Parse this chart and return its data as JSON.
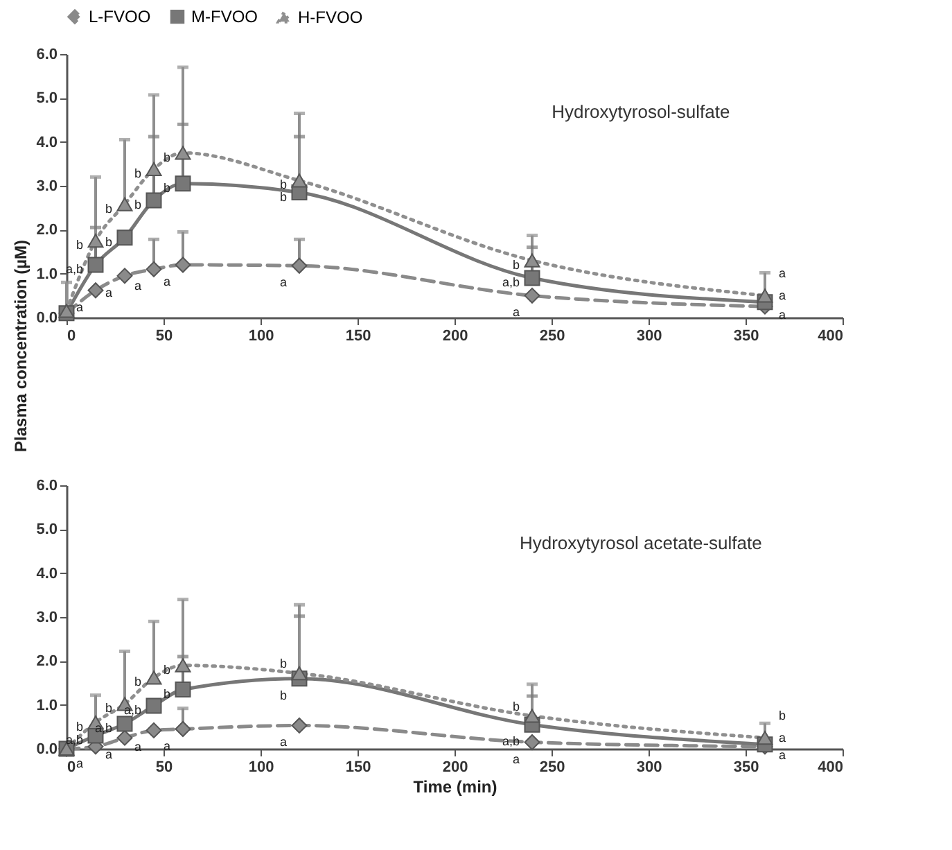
{
  "chart_data": [
    {
      "type": "line",
      "annotations": [
        "Hydroxytyrosol-sulfate",
        {
          "text": "a",
          "x": 15,
          "y": 0.62
        },
        {
          "text": "a,b",
          "x": 15,
          "y": 1.2
        },
        {
          "text": "b",
          "x": 15,
          "y": 1.75
        },
        {
          "text": "a",
          "x": 30,
          "y": 0.95
        },
        {
          "text": "b",
          "x": 30,
          "y": 1.82
        },
        {
          "text": "b",
          "x": 30,
          "y": 2.58
        },
        {
          "text": "a",
          "x": 45,
          "y": 1.1
        },
        {
          "text": "b",
          "x": 45,
          "y": 2.67
        },
        {
          "text": "b",
          "x": 45,
          "y": 3.38
        },
        {
          "text": "a",
          "x": 60,
          "y": 1.2
        },
        {
          "text": "b",
          "x": 60,
          "y": 3.05
        },
        {
          "text": "b",
          "x": 60,
          "y": 3.75
        },
        {
          "text": "a",
          "x": 120,
          "y": 1.18
        },
        {
          "text": "b",
          "x": 120,
          "y": 2.85
        },
        {
          "text": "b",
          "x": 120,
          "y": 3.12
        },
        {
          "text": "a",
          "x": 240,
          "y": 0.5
        },
        {
          "text": "a,b",
          "x": 240,
          "y": 0.9
        },
        {
          "text": "b",
          "x": 240,
          "y": 1.3
        },
        {
          "text": "a",
          "x": 360,
          "y": 0.25
        },
        {
          "text": "a",
          "x": 360,
          "y": 0.35
        },
        {
          "text": "a",
          "x": 360,
          "y": 0.5
        }
      ],
      "x": [
        0,
        15,
        30,
        45,
        60,
        120,
        240,
        360
      ],
      "series": [
        {
          "name": "L-FVOO",
          "color": "#8a8a8a",
          "marker": "diamond",
          "line_style": "dashed",
          "values": [
            0.1,
            0.62,
            0.95,
            1.1,
            1.2,
            1.18,
            0.5,
            0.25
          ],
          "errors": [
            null,
            null,
            null,
            [
              1.1,
              1.78
            ],
            [
              1.2,
              1.95
            ],
            [
              1.18,
              1.78
            ],
            null,
            null
          ]
        },
        {
          "name": "M-FVOO",
          "color": "#777777",
          "marker": "square",
          "line_style": "solid",
          "values": [
            0.1,
            1.2,
            1.82,
            2.67,
            3.05,
            2.85,
            0.9,
            0.35
          ],
          "errors": [
            null,
            [
              1.2,
              2.05
            ],
            null,
            [
              2.67,
              4.12
            ],
            [
              3.05,
              4.4
            ],
            [
              2.85,
              4.12
            ],
            [
              0.9,
              1.6
            ],
            null
          ]
        },
        {
          "name": "H-FVOO",
          "color": "#8f8f8f",
          "marker": "triangle",
          "line_style": "dotted",
          "values": [
            0.15,
            1.75,
            2.58,
            3.38,
            3.75,
            3.12,
            1.3,
            0.5
          ],
          "errors": [
            [
              0.15,
              0.8
            ],
            [
              1.75,
              3.2
            ],
            [
              2.58,
              4.05
            ],
            [
              3.38,
              5.07
            ],
            [
              3.75,
              5.7
            ],
            [
              3.12,
              4.65
            ],
            [
              1.3,
              1.87
            ],
            [
              0.5,
              1.02
            ]
          ]
        }
      ],
      "xlim": [
        0,
        400
      ],
      "xticks": [
        0,
        50,
        100,
        150,
        200,
        250,
        300,
        350,
        400
      ],
      "ylim": [
        0,
        6
      ],
      "yticks": [
        {
          "value": 0,
          "label": "0.0"
        },
        {
          "value": 1,
          "label": "1.0"
        },
        {
          "value": 2,
          "label": "2.0"
        },
        {
          "value": 3,
          "label": "3.0"
        },
        {
          "value": 4,
          "label": "4.0"
        },
        {
          "value": 5,
          "label": "5.0"
        },
        {
          "value": 6,
          "label": "6.0"
        }
      ],
      "ylabel": "Plasma concentration (µM)",
      "legend": "top",
      "grid": false
    },
    {
      "type": "line",
      "annotations": [
        "Hydroxytyrosol acetate-sulfate",
        {
          "text": "a",
          "x": 15,
          "y": 0.05
        },
        {
          "text": "a,b",
          "x": 15,
          "y": 0.3
        },
        {
          "text": "b",
          "x": 15,
          "y": 0.6
        },
        {
          "text": "a",
          "x": 30,
          "y": 0.25
        },
        {
          "text": "a,b",
          "x": 30,
          "y": 0.57
        },
        {
          "text": "b",
          "x": 30,
          "y": 1.02
        },
        {
          "text": "a",
          "x": 45,
          "y": 0.42
        },
        {
          "text": "a,b",
          "x": 45,
          "y": 0.98
        },
        {
          "text": "b",
          "x": 45,
          "y": 1.62
        },
        {
          "text": "a",
          "x": 60,
          "y": 0.45
        },
        {
          "text": "b",
          "x": 60,
          "y": 1.35
        },
        {
          "text": "b",
          "x": 60,
          "y": 1.9
        },
        {
          "text": "a",
          "x": 120,
          "y": 0.53
        },
        {
          "text": "b",
          "x": 120,
          "y": 1.6
        },
        {
          "text": "b",
          "x": 120,
          "y": 1.72
        },
        {
          "text": "a",
          "x": 240,
          "y": 0.15
        },
        {
          "text": "a,b",
          "x": 240,
          "y": 0.55
        },
        {
          "text": "b",
          "x": 240,
          "y": 0.75
        },
        {
          "text": "a",
          "x": 360,
          "y": 0.05
        },
        {
          "text": "a",
          "x": 360,
          "y": 0.1
        },
        {
          "text": "b",
          "x": 360,
          "y": 0.25
        }
      ],
      "x": [
        0,
        15,
        30,
        45,
        60,
        120,
        240,
        360
      ],
      "series": [
        {
          "color": "#8a8a8a",
          "marker": "diamond",
          "line_style": "dashed",
          "values": [
            0,
            0.05,
            0.25,
            0.42,
            0.45,
            0.53,
            0.15,
            0.05
          ],
          "errors": [
            null,
            null,
            null,
            null,
            [
              0.45,
              0.92
            ],
            null,
            null,
            null
          ]
        },
        {
          "color": "#777777",
          "marker": "square",
          "line_style": "solid",
          "values": [
            0,
            0.3,
            0.57,
            0.98,
            1.35,
            1.6,
            0.55,
            0.1
          ],
          "errors": [
            null,
            null,
            null,
            null,
            [
              1.35,
              2.1
            ],
            [
              1.6,
              3.02
            ],
            [
              0.55,
              1.2
            ],
            null
          ]
        },
        {
          "color": "#8f8f8f",
          "marker": "triangle",
          "line_style": "dotted",
          "values": [
            0,
            0.6,
            1.02,
            1.62,
            1.9,
            1.72,
            0.75,
            0.25
          ],
          "errors": [
            null,
            [
              0.6,
              1.22
            ],
            [
              1.02,
              2.22
            ],
            [
              1.62,
              2.9
            ],
            [
              1.9,
              3.4
            ],
            [
              1.72,
              3.28
            ],
            [
              0.75,
              1.47
            ],
            [
              0.25,
              0.58
            ]
          ]
        }
      ],
      "xlim": [
        0,
        400
      ],
      "xticks": [
        0,
        50,
        100,
        150,
        200,
        250,
        300,
        350,
        400
      ],
      "ylim": [
        0,
        6
      ],
      "yticks": [
        {
          "value": 0,
          "label": "0.0"
        },
        {
          "value": 1,
          "label": "1.0"
        },
        {
          "value": 2,
          "label": "2.0"
        },
        {
          "value": 3,
          "label": "3.0"
        },
        {
          "value": 4,
          "label": "4.0"
        },
        {
          "value": 5,
          "label": "5.0"
        },
        {
          "value": 6,
          "label": "6.0"
        }
      ],
      "xlabel": "Time (min)",
      "legend": false,
      "grid": false
    }
  ]
}
